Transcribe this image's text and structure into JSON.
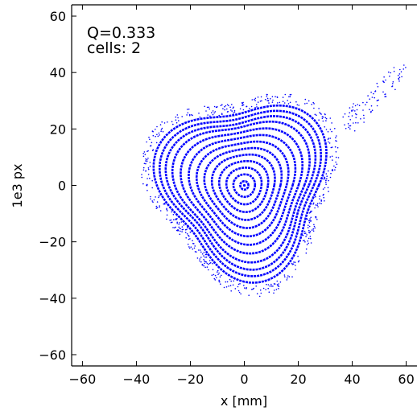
{
  "chart_data": {
    "type": "scatter",
    "title": "",
    "xlabel": "x [mm]",
    "ylabel": "1e3 px",
    "xlim": [
      -64,
      64
    ],
    "ylim": [
      -64,
      64
    ],
    "x_ticks": [
      -60,
      -40,
      -20,
      0,
      20,
      40,
      60
    ],
    "y_ticks": [
      -60,
      -40,
      -20,
      0,
      20,
      40,
      60
    ],
    "x_tick_labels": [
      "−60",
      "−40",
      "−20",
      "0",
      "20",
      "40",
      "60"
    ],
    "y_tick_labels": [
      "−60",
      "−40",
      "−20",
      "0",
      "20",
      "40",
      "60"
    ],
    "annotations": [
      "Q=0.333",
      "cells: 2"
    ],
    "grid": false,
    "color": "#0000ff",
    "series": [
      {
        "style": "closed-orbit-rings",
        "rings": [
          {
            "r": 1.5
          },
          {
            "r": 4
          },
          {
            "r": 6.5
          },
          {
            "r": 9
          },
          {
            "r": 11.5
          },
          {
            "r": 14
          },
          {
            "r": 16.5
          },
          {
            "r": 19
          },
          {
            "r": 21.5
          },
          {
            "r": 24
          },
          {
            "r": 26
          },
          {
            "r": 28
          },
          {
            "r": 30
          }
        ],
        "shape": {
          "triangularity": 0.16,
          "orientation_deg": 40
        }
      },
      {
        "style": "scattered-points",
        "x_range": [
          -32,
          60
        ],
        "y_range": [
          -36,
          47
        ]
      }
    ]
  }
}
